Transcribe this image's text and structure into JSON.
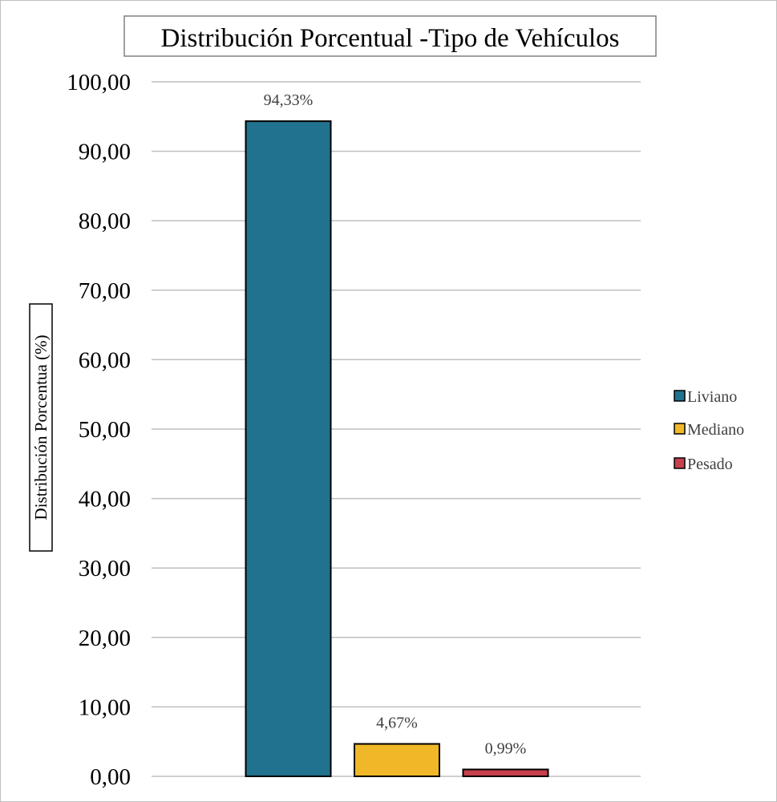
{
  "chart_data": {
    "type": "bar",
    "title": "Distribución Porcentual -Tipo de Vehículos",
    "xlabel": "",
    "ylabel": "Distribución Porcentua (%)",
    "categories": [
      "Liviano",
      "Mediano",
      "Pesado"
    ],
    "values": [
      94.33,
      4.67,
      0.99
    ],
    "data_labels": [
      "94,33%",
      "4,67%",
      "0,99%"
    ],
    "colors": [
      "#21728f",
      "#f0b728",
      "#c8404d"
    ],
    "ylim": [
      0,
      100
    ],
    "yticks": [
      0,
      10,
      20,
      30,
      40,
      50,
      60,
      70,
      80,
      90,
      100
    ],
    "ytick_labels": [
      "0,00",
      "10,00",
      "20,00",
      "30,00",
      "40,00",
      "50,00",
      "60,00",
      "70,00",
      "80,00",
      "90,00",
      "100,00"
    ],
    "grid": true,
    "legend": {
      "placement": "right",
      "entries": [
        "Liviano",
        "Mediano",
        "Pesado"
      ]
    }
  }
}
